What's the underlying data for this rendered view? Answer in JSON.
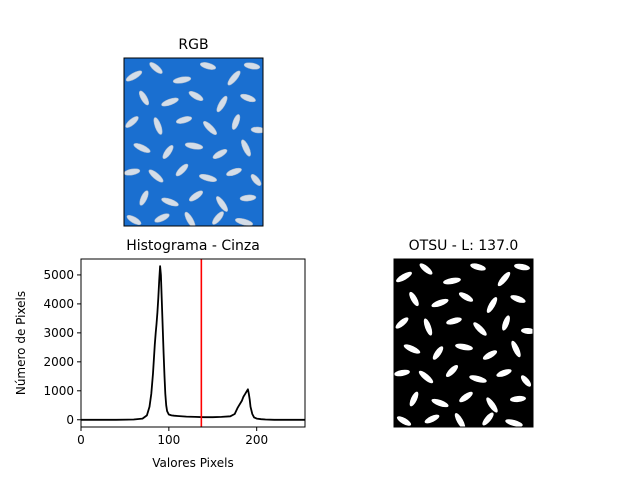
{
  "panels": {
    "rgb": {
      "title": "RGB"
    },
    "otsu": {
      "title": "OTSU - L: 137.0"
    }
  },
  "chart_data": {
    "type": "line",
    "title": "Histograma - Cinza",
    "xlabel": "Valores Pixels",
    "ylabel": "Número de Pixels",
    "xlim": [
      0,
      255
    ],
    "ylim": [
      -250,
      5550
    ],
    "xticks": [
      0,
      100,
      200
    ],
    "yticks": [
      0,
      1000,
      2000,
      3000,
      4000,
      5000
    ],
    "grid": false,
    "series": [
      {
        "color": "#000000",
        "x": [
          0,
          20,
          40,
          60,
          70,
          75,
          78,
          80,
          82,
          84,
          85,
          86,
          87,
          88,
          89,
          90,
          91,
          92,
          93,
          94,
          95,
          96,
          97,
          98,
          100,
          103,
          106,
          110,
          120,
          130,
          140,
          150,
          160,
          170,
          175,
          178,
          180,
          183,
          185,
          187,
          189,
          190,
          191,
          192,
          193,
          195,
          197,
          200,
          205,
          210,
          220,
          240,
          255
        ],
        "y": [
          0,
          0,
          0,
          10,
          40,
          150,
          450,
          900,
          1600,
          2600,
          3000,
          3300,
          3700,
          4200,
          4800,
          5300,
          5000,
          4100,
          3200,
          2300,
          1500,
          900,
          500,
          300,
          180,
          150,
          140,
          130,
          110,
          100,
          90,
          90,
          100,
          120,
          200,
          400,
          500,
          650,
          800,
          900,
          1000,
          1050,
          900,
          700,
          450,
          200,
          80,
          40,
          20,
          10,
          0,
          0,
          0
        ]
      }
    ],
    "threshold": {
      "x": 137,
      "color": "#ff0000"
    }
  }
}
